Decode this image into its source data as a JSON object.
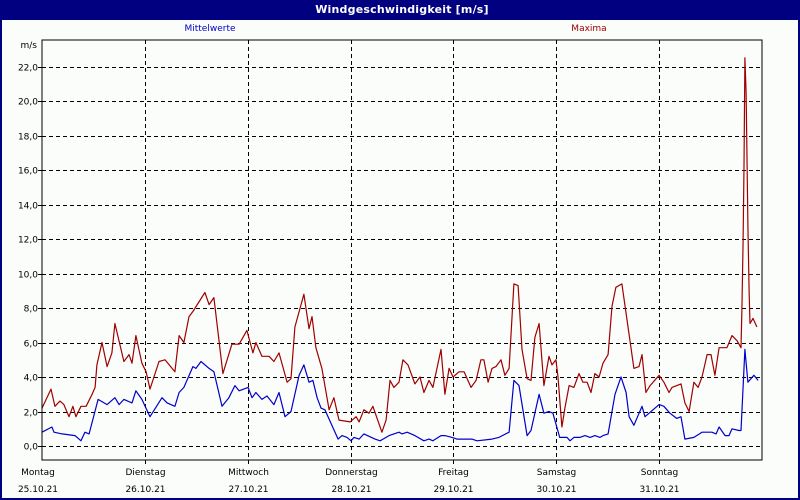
{
  "window": {
    "title": "Windgeschwindigkeit [m/s]"
  },
  "legend": {
    "mean_label": "Mittelwerte",
    "max_label": "Maxima"
  },
  "colors": {
    "titlebar": "#000080",
    "mean": "#0000cc",
    "max": "#a00000",
    "grid": "#000000",
    "background": "#fbfdfb"
  },
  "chart_data": {
    "type": "line",
    "title": "Windgeschwindigkeit [m/s]",
    "xlabel": "",
    "ylabel": "m/s",
    "ylim": [
      -0.9,
      23.3
    ],
    "xlim_hours": [
      0,
      168
    ],
    "grid": true,
    "legend_position": "top",
    "yticks": [
      0,
      2,
      4,
      6,
      8,
      10,
      12,
      14,
      16,
      18,
      20,
      22
    ],
    "ytick_labels": [
      "0,0",
      "2,0",
      "4,0",
      "6,0",
      "8,0",
      "10,0",
      "12,0",
      "14,0",
      "16,0",
      "18,0",
      "20,0",
      "22,0"
    ],
    "xticks": [
      {
        "hour": 0,
        "day": "Montag",
        "date": "25.10.21"
      },
      {
        "hour": 24,
        "day": "Dienstag",
        "date": "26.10.21"
      },
      {
        "hour": 48,
        "day": "Mittwoch",
        "date": "27.10.21"
      },
      {
        "hour": 72,
        "day": "Donnerstag",
        "date": "28.10.21"
      },
      {
        "hour": 96,
        "day": "Freitag",
        "date": "29.10.21"
      },
      {
        "hour": 120,
        "day": "Samstag",
        "date": "30.10.21"
      },
      {
        "hour": 144,
        "day": "Sonntag",
        "date": "31.10.21"
      }
    ],
    "series": [
      {
        "name": "Maxima",
        "color": "#a00000",
        "x_hours": [
          0,
          2.1,
          3.0,
          4.2,
          5.1,
          6.3,
          7.2,
          7.9,
          9.1,
          10.3,
          11.7,
          12.4,
          12.8,
          14.0,
          15.2,
          16.3,
          17.0,
          19.1,
          20.3,
          21.0,
          21.9,
          23.3,
          24.3,
          25.2,
          27.3,
          28.7,
          31.0,
          32.0,
          33.1,
          34.3,
          35.2,
          38.0,
          39.0,
          40.1,
          42.2,
          44.3,
          46.0,
          47.8,
          49.2,
          49.9,
          51.3,
          53.0,
          54.1,
          55.3,
          57.2,
          58.1,
          59.0,
          61.1,
          62.3,
          63.0,
          63.9,
          65.3,
          67.0,
          68.1,
          69.3,
          71.9,
          73.3,
          74.0,
          75.1,
          76.3,
          77.2,
          79.3,
          80.3,
          81.2,
          82.1,
          83.3,
          84.2,
          85.4,
          87.0,
          88.2,
          89.1,
          90.3,
          91.2,
          93.1,
          94.0,
          95.0,
          95.9,
          97.3,
          98.5,
          100.1,
          101.3,
          102.4,
          103.1,
          104.1,
          105.0,
          105.9,
          107.1,
          108.0,
          109.0,
          110.1,
          111.1,
          112.0,
          113.2,
          114.1,
          115.0,
          116.0,
          117.1,
          118.3,
          119.0,
          119.9,
          120.4,
          121.3,
          122.0,
          123.0,
          124.1,
          125.3,
          126.2,
          127.2,
          128.1,
          129.0,
          130.0,
          130.9,
          132.1,
          133.0,
          133.9,
          135.3,
          137.2,
          138.1,
          139.3,
          140.0,
          140.9,
          141.9,
          144.0,
          145.1,
          146.3,
          147.0,
          149.1,
          150.0,
          151.0,
          152.1,
          153.1,
          154.0,
          155.2,
          156.1,
          157.0,
          158.0,
          159.8,
          161.0,
          162.2,
          163.1,
          163.3,
          163.6,
          163.8,
          164.0,
          164.3,
          164.5,
          164.7,
          165.0,
          165.2,
          165.9,
          166.8
        ],
        "values": [
          2.2,
          3.3,
          2.3,
          2.6,
          2.4,
          1.7,
          2.3,
          1.7,
          2.3,
          2.3,
          3.0,
          3.4,
          4.7,
          6.0,
          4.6,
          5.4,
          7.1,
          4.9,
          5.3,
          4.8,
          6.4,
          4.8,
          4.3,
          3.3,
          4.9,
          5.0,
          4.3,
          6.4,
          6.0,
          7.5,
          7.8,
          8.9,
          8.2,
          8.6,
          4.2,
          5.9,
          5.9,
          6.7,
          5.4,
          6.0,
          5.2,
          5.2,
          4.9,
          5.4,
          3.7,
          3.9,
          6.9,
          8.8,
          6.8,
          7.5,
          5.7,
          4.5,
          2.1,
          2.8,
          1.5,
          1.4,
          1.7,
          1.4,
          2.1,
          1.9,
          2.3,
          0.8,
          1.5,
          3.8,
          3.4,
          3.7,
          5.0,
          4.7,
          3.6,
          4.0,
          3.1,
          3.8,
          3.4,
          5.6,
          3.0,
          4.5,
          4.0,
          4.3,
          4.3,
          3.4,
          3.8,
          5.0,
          5.0,
          3.7,
          4.5,
          4.6,
          5.0,
          4.1,
          4.5,
          9.4,
          9.3,
          5.6,
          3.9,
          3.8,
          6.3,
          7.1,
          3.5,
          5.2,
          4.7,
          5.0,
          4.0,
          1.1,
          2.2,
          3.5,
          3.4,
          4.2,
          3.7,
          3.7,
          3.1,
          4.2,
          4.0,
          4.8,
          5.3,
          8.1,
          9.2,
          9.4,
          6.1,
          4.5,
          4.6,
          5.3,
          3.1,
          3.5,
          4.1,
          3.7,
          3.1,
          3.4,
          3.6,
          2.5,
          2.0,
          3.7,
          3.4,
          4.0,
          5.3,
          5.3,
          4.1,
          5.7,
          5.7,
          6.4,
          6.1,
          5.7,
          7.9,
          11.9,
          16.2,
          22.5,
          20.5,
          16.7,
          12.8,
          9.0,
          7.1,
          7.4,
          6.9
        ]
      },
      {
        "name": "Mittelwerte",
        "color": "#0000cc",
        "x_hours": [
          0,
          2.3,
          2.8,
          4.7,
          7.7,
          9.1,
          10.0,
          11.0,
          13.1,
          15.2,
          17.0,
          18.0,
          19.1,
          21.0,
          21.9,
          23.3,
          25.2,
          28.0,
          29.2,
          31.0,
          32.0,
          33.1,
          35.2,
          35.9,
          37.1,
          39.0,
          40.1,
          42.0,
          43.6,
          45.0,
          46.0,
          48.1,
          49.0,
          49.9,
          51.3,
          52.5,
          54.1,
          55.3,
          56.7,
          58.1,
          60.0,
          61.1,
          62.3,
          63.2,
          64.2,
          65.1,
          66.0,
          69.1,
          70.0,
          71.2,
          72.1,
          72.8,
          74.0,
          75.1,
          77.7,
          78.9,
          81.0,
          83.3,
          84.0,
          85.2,
          87.0,
          89.1,
          90.3,
          91.2,
          93.1,
          94.0,
          95.7,
          96.8,
          100.3,
          101.5,
          105.0,
          106.6,
          109.0,
          110.1,
          111.3,
          113.2,
          114.1,
          116.0,
          117.1,
          118.3,
          119.2,
          120.8,
          122.5,
          123.2,
          124.1,
          125.5,
          126.7,
          127.9,
          129.0,
          130.2,
          130.9,
          132.1,
          133.7,
          135.1,
          136.3,
          137.0,
          138.1,
          140.0,
          140.7,
          144.0,
          145.1,
          146.5,
          148.1,
          149.1,
          150.0,
          152.1,
          154.0,
          156.3,
          157.3,
          158.0,
          159.4,
          160.3,
          161.0,
          162.6,
          163.1,
          164.0,
          164.7,
          166.1,
          167.1
        ],
        "values": [
          0.8,
          1.1,
          0.8,
          0.7,
          0.6,
          0.3,
          0.8,
          0.7,
          2.7,
          2.4,
          2.8,
          2.4,
          2.7,
          2.5,
          3.2,
          2.7,
          1.7,
          2.8,
          2.5,
          2.3,
          3.1,
          3.4,
          4.6,
          4.5,
          4.9,
          4.5,
          4.3,
          2.3,
          2.8,
          3.5,
          3.2,
          3.4,
          2.8,
          3.1,
          2.7,
          2.9,
          2.4,
          3.1,
          1.7,
          2.0,
          4.1,
          4.7,
          3.7,
          3.8,
          2.8,
          2.2,
          2.1,
          0.4,
          0.6,
          0.5,
          0.3,
          0.5,
          0.4,
          0.7,
          0.4,
          0.3,
          0.6,
          0.8,
          0.7,
          0.8,
          0.6,
          0.3,
          0.4,
          0.3,
          0.6,
          0.6,
          0.5,
          0.4,
          0.4,
          0.3,
          0.4,
          0.5,
          0.8,
          3.8,
          3.5,
          0.6,
          0.9,
          3.0,
          1.9,
          2.0,
          1.9,
          0.5,
          0.5,
          0.3,
          0.5,
          0.5,
          0.6,
          0.5,
          0.6,
          0.5,
          0.6,
          0.7,
          3.0,
          4.0,
          3.1,
          1.7,
          1.2,
          2.3,
          1.7,
          2.4,
          2.3,
          1.9,
          1.6,
          1.7,
          0.4,
          0.5,
          0.8,
          0.8,
          0.7,
          1.1,
          0.6,
          0.6,
          1.0,
          0.9,
          0.9,
          5.6,
          3.7,
          4.1,
          3.8
        ]
      }
    ]
  }
}
